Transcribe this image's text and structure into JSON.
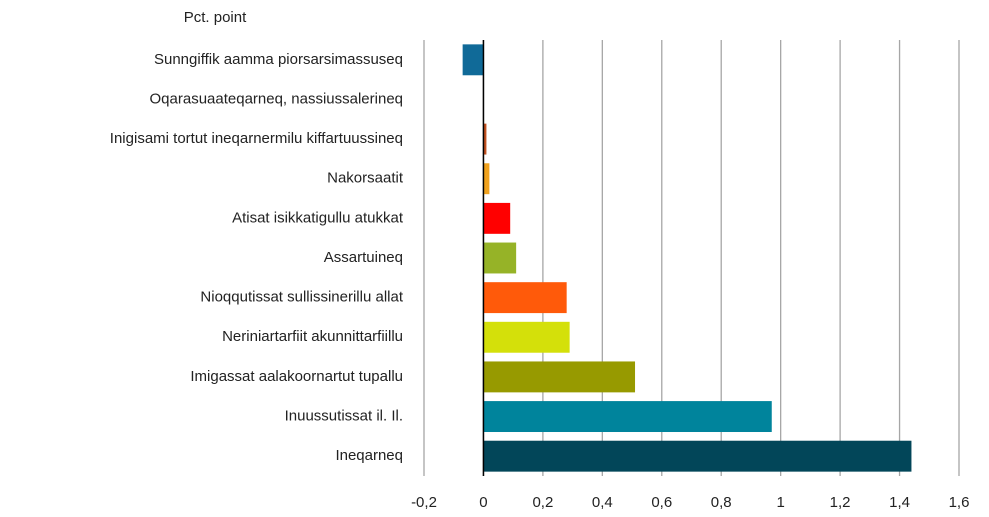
{
  "chart_data": {
    "type": "bar",
    "orientation": "horizontal",
    "y_label": "Pct. point",
    "categories": [
      "Sunngiffik aamma piorsarsimassuseq",
      "Oqarasuaateqarneq, nassiussalerineq",
      "Inigisami tortut ineqarnermilu kiffartuussineq",
      "Nakorsaatit",
      "Atisat isikkatigullu atukkat",
      "Assartuineq",
      "Nioqqutissat sullissinerillu allat",
      "Neriniartarfiit akunnittarfiillu",
      "Imigassat aalakoornartut tupallu",
      "Inuussutissat il. Il.",
      "Ineqarneq"
    ],
    "values": [
      -0.07,
      0,
      0.01,
      0.02,
      0.09,
      0.11,
      0.28,
      0.29,
      0.51,
      0.97,
      1.44
    ],
    "colors": [
      "#106a98",
      "#1f6d6d",
      "#c0501f",
      "#f0a21e",
      "#ff0000",
      "#96b327",
      "#ff5a0a",
      "#d4e00a",
      "#979a00",
      "#00849c",
      "#024659"
    ],
    "xlim": [
      -0.2,
      1.6
    ],
    "xticks": [
      {
        "value": -0.2,
        "label": "-0,2"
      },
      0,
      {
        "value": 0.2,
        "label": "0,2"
      },
      {
        "value": 0.4,
        "label": "0,4"
      },
      {
        "value": 0.6,
        "label": "0,6"
      },
      {
        "value": 0.8,
        "label": "0,8"
      },
      1,
      {
        "value": 1.2,
        "label": "1,2"
      },
      {
        "value": 1.4,
        "label": "1,4"
      },
      {
        "value": 1.6,
        "label": "1,6"
      }
    ],
    "grid": true
  }
}
